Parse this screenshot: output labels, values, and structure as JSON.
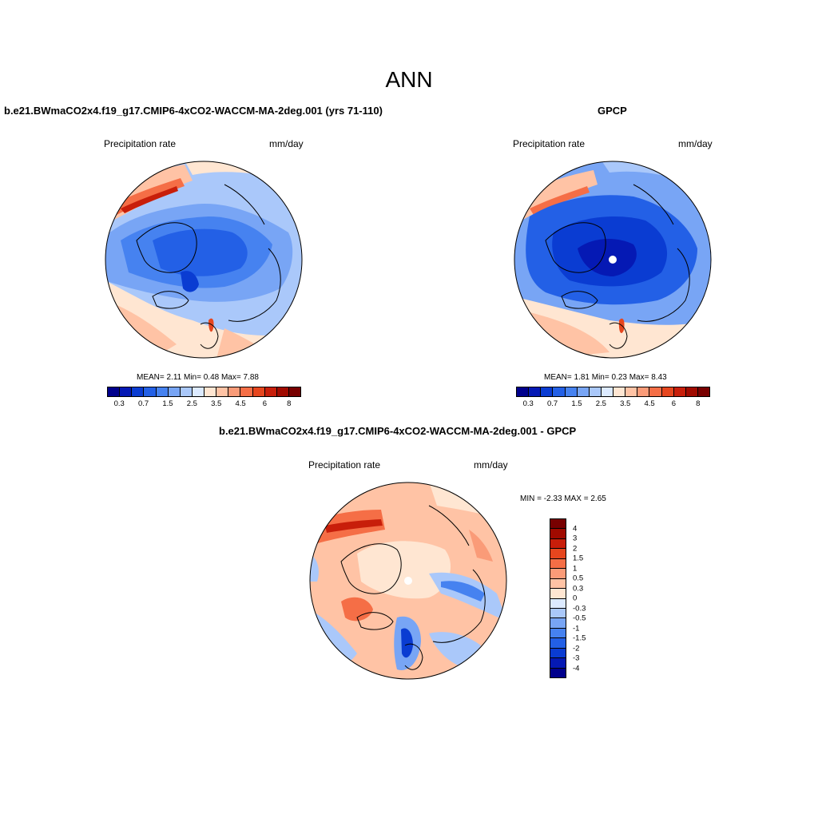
{
  "figure": {
    "title": "ANN"
  },
  "panels": [
    {
      "title": "b.e21.BWmaCO2x4.f19_g17.CMIP6-4xCO2-WACCM-MA-2deg.001 (yrs 71-110)",
      "variable": "Precipitation rate",
      "units": "mm/day",
      "stats": "MEAN=   2.11  Min=   0.48  Max=   7.88"
    },
    {
      "title": "GPCP",
      "variable": "Precipitation rate",
      "units": "mm/day",
      "stats": "MEAN=   1.81  Min=   0.23  Max=   8.43"
    },
    {
      "title": "b.e21.BWmaCO2x4.f19_g17.CMIP6-4xCO2-WACCM-MA-2deg.001 - GPCP",
      "variable": "Precipitation rate",
      "units": "mm/day",
      "stats": "MIN =  -2.33 MAX =   2.65"
    }
  ],
  "colorbar_abs": {
    "tick_labels": [
      "0.3",
      "0.7",
      "1.5",
      "2.5",
      "3.5",
      "4.5",
      "6",
      "8"
    ],
    "colors": [
      "#00008c",
      "#0519b4",
      "#0a3cd2",
      "#2360e6",
      "#4682f0",
      "#78a5f5",
      "#aac8fa",
      "#dceaff",
      "#ffe6d2",
      "#ffc3a5",
      "#fa9b78",
      "#f56e46",
      "#e6461e",
      "#c81e0a",
      "#a00a00",
      "#780000"
    ]
  },
  "colorbar_diff": {
    "tick_labels": [
      "4",
      "3",
      "2",
      "1.5",
      "1",
      "0.5",
      "0.3",
      "0",
      "-0.3",
      "-0.5",
      "-1",
      "-1.5",
      "-2",
      "-3",
      "-4"
    ],
    "colors": [
      "#780000",
      "#a00a00",
      "#c81e0a",
      "#e6461e",
      "#f56e46",
      "#fa9b78",
      "#ffc3a5",
      "#ffe6d2",
      "#dceaff",
      "#aac8fa",
      "#78a5f5",
      "#4682f0",
      "#2360e6",
      "#0a3cd2",
      "#0519b4",
      "#00008c"
    ]
  }
}
